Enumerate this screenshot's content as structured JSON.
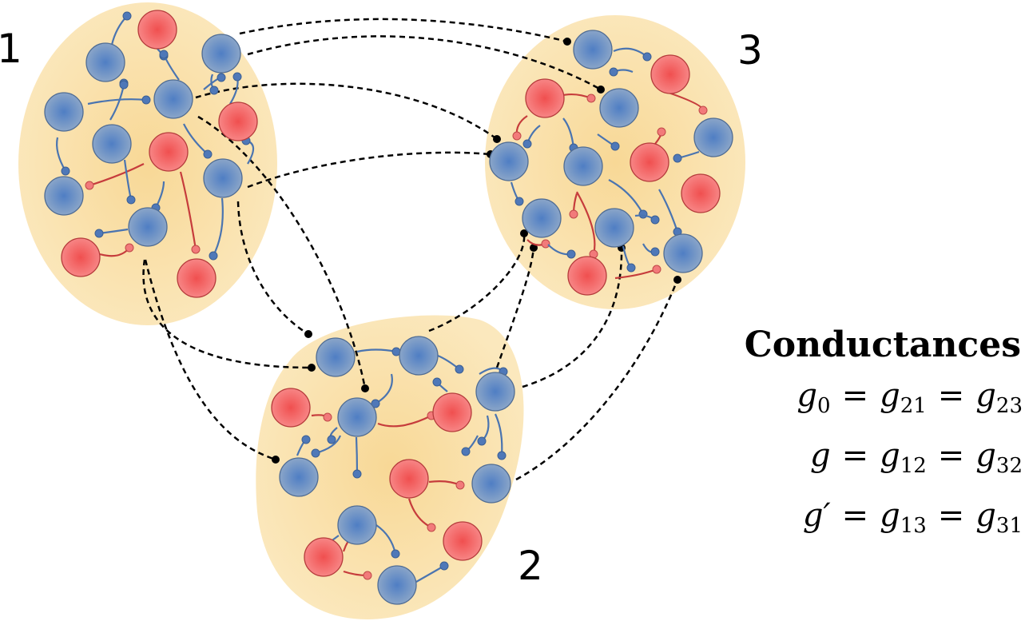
{
  "figure": {
    "clusters": [
      {
        "id": "1",
        "label": "1"
      },
      {
        "id": "2",
        "label": "2"
      },
      {
        "id": "3",
        "label": "3"
      }
    ],
    "node_types": {
      "excitatory": {
        "color": "#6e93c2",
        "stroke": "#4f6c94"
      },
      "inhibitory": {
        "color": "#f26464",
        "stroke": "#b53b3b"
      }
    },
    "cluster_fill": "#fbe6b4",
    "intra_edge_colors": {
      "excitatory": "#4a74b0",
      "inhibitory": "#c63c3c"
    },
    "inter_edge_color": "#000000"
  },
  "legend": {
    "title": "Conductances",
    "equations": [
      {
        "lhs": "g",
        "lhs_sub": "0",
        "mid": "g",
        "mid_sub": "21",
        "rhs": "g",
        "rhs_sub": "23",
        "equals": "="
      },
      {
        "lhs": "g",
        "lhs_sub": "",
        "mid": "g",
        "mid_sub": "12",
        "rhs": "g",
        "rhs_sub": "32",
        "equals": "="
      },
      {
        "lhs": "g′",
        "lhs_sub": "",
        "mid": "g",
        "mid_sub": "13",
        "rhs": "g",
        "rhs_sub": "31",
        "equals": "="
      }
    ]
  }
}
